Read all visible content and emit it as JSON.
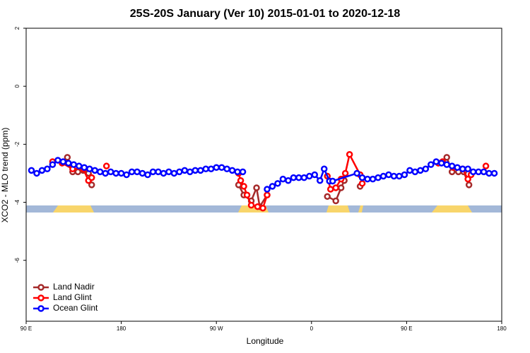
{
  "chart_data": {
    "type": "line",
    "title": "25S-20S January (Ver 10)   2015-01-01 to 2020-12-18",
    "x_label": "Longitude",
    "y_label": "XCO2 - MLO trend (ppm)",
    "xlim": [
      90,
      540
    ],
    "ylim": [
      -8.1,
      2
    ],
    "xticks": [
      {
        "value": 90,
        "label": "90 E"
      },
      180,
      {
        "value": 270,
        "label": "90 W"
      },
      {
        "value": 360,
        "label": "0"
      },
      {
        "value": 450,
        "label": "90 E"
      },
      {
        "value": 540,
        "label": "180"
      }
    ],
    "yticks": [
      2,
      0,
      -2,
      -4,
      -6
    ],
    "legend": "bottom-left",
    "series": [
      {
        "name": "Land Nadir",
        "color": "#a52a2a",
        "x": [
          129,
          134,
          139,
          144,
          149,
          152,
          null,
          291,
          296,
          303,
          308,
          311,
          318,
          null,
          375,
          383,
          388,
          391,
          null,
          406,
          null,
          488,
          493,
          499,
          504,
          509
        ],
        "values": [
          -2.45,
          -2.95,
          -2.95,
          -2.9,
          -3.0,
          -3.4,
          null,
          -3.4,
          -3.75,
          -3.95,
          -3.5,
          -4.15,
          -3.75,
          null,
          -3.8,
          -3.95,
          -3.5,
          -3.25,
          null,
          -3.45,
          null,
          -2.45,
          -2.95,
          -2.95,
          -2.95,
          -3.4
        ]
      },
      {
        "name": "Land Glint",
        "color": "#ff0000",
        "x": [
          115,
          124,
          134,
          144,
          149,
          152,
          null,
          166,
          null,
          291,
          293,
          296,
          299,
          303,
          309,
          314,
          318,
          null,
          375,
          378,
          383,
          388,
          392,
          396,
          406,
          408,
          null,
          480,
          484,
          494,
          503,
          508,
          511,
          null,
          525
        ],
        "values": [
          -2.6,
          -2.65,
          -2.85,
          -2.85,
          -3.25,
          -3.15,
          null,
          -2.75,
          null,
          -3.0,
          -3.25,
          -3.45,
          -3.75,
          -4.1,
          -4.15,
          -4.2,
          -3.75,
          null,
          -3.1,
          -3.55,
          -3.5,
          -3.2,
          -3.0,
          -2.35,
          -3.05,
          -3.35,
          null,
          -2.65,
          -2.6,
          -2.8,
          -2.85,
          -3.2,
          -3.05,
          null,
          -2.75
        ]
      },
      {
        "name": "Ocean Glint",
        "color": "#0000ff",
        "x": [
          95,
          100,
          105,
          110,
          115,
          120,
          125,
          130,
          135,
          140,
          145,
          150,
          155,
          160,
          165,
          170,
          175,
          180,
          185,
          190,
          195,
          200,
          205,
          210,
          215,
          220,
          225,
          230,
          235,
          240,
          245,
          250,
          255,
          260,
          265,
          270,
          275,
          280,
          285,
          290,
          295,
          null,
          318,
          323,
          328,
          333,
          338,
          343,
          348,
          353,
          358,
          363,
          368,
          372,
          377,
          380,
          403,
          408,
          413,
          418,
          423,
          428,
          433,
          438,
          443,
          448,
          453,
          458,
          463,
          468,
          473,
          478,
          483,
          488,
          493,
          498,
          503,
          508,
          513,
          518,
          523,
          528,
          533
        ],
        "values": [
          -2.9,
          -3.0,
          -2.9,
          -2.85,
          -2.7,
          -2.55,
          -2.6,
          -2.65,
          -2.7,
          -2.75,
          -2.8,
          -2.85,
          -2.9,
          -2.95,
          -3.0,
          -2.95,
          -3.0,
          -3.0,
          -3.05,
          -2.95,
          -2.95,
          -3.0,
          -3.05,
          -2.95,
          -2.95,
          -3.0,
          -2.95,
          -3.0,
          -2.95,
          -2.9,
          -2.95,
          -2.9,
          -2.9,
          -2.85,
          -2.85,
          -2.8,
          -2.8,
          -2.85,
          -2.9,
          -2.95,
          -2.95,
          null,
          -3.55,
          -3.45,
          -3.35,
          -3.2,
          -3.25,
          -3.15,
          -3.15,
          -3.15,
          -3.1,
          -3.05,
          -3.25,
          -2.85,
          -3.27,
          -3.27,
          -3.0,
          -3.15,
          -3.2,
          -3.2,
          -3.15,
          -3.1,
          -3.05,
          -3.1,
          -3.1,
          -3.05,
          -2.9,
          -2.95,
          -2.9,
          -2.85,
          -2.7,
          -2.6,
          -2.65,
          -2.7,
          -2.75,
          -2.8,
          -2.85,
          -2.85,
          -2.95,
          -2.95,
          -2.95,
          -3.0,
          -3.0
        ]
      }
    ]
  }
}
